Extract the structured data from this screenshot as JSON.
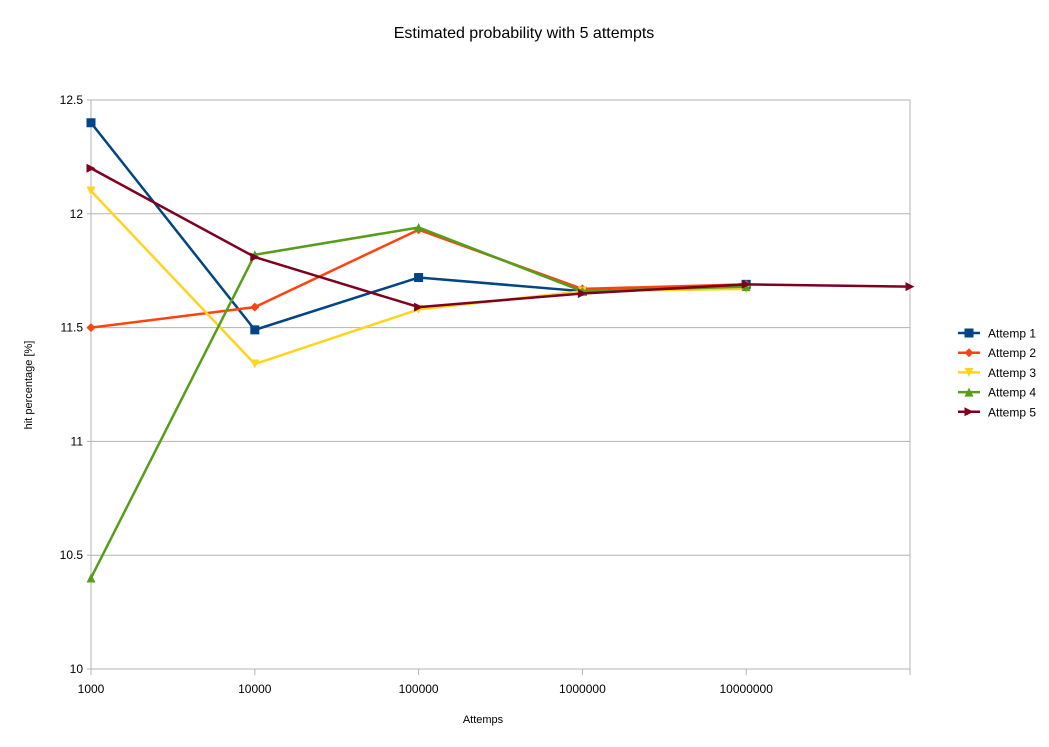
{
  "chart_data": {
    "type": "line",
    "title": "Estimated probability with 5 attempts",
    "xlabel": "Attemps",
    "ylabel": "hit percentage [%]",
    "x_scale": "log",
    "x_ticks": [
      "1000",
      "10000",
      "100000",
      "1000000",
      "10000000"
    ],
    "y_ticks": [
      "10",
      "10.5",
      "11",
      "11.5",
      "12",
      "12.5"
    ],
    "ylim": [
      10,
      12.5
    ],
    "xlim": [
      1000,
      100000000
    ],
    "grid": "horizontal",
    "legend_position": "right",
    "series": [
      {
        "name": "Attemp 1",
        "color": "#004586",
        "marker": "square",
        "x": [
          1000,
          10000,
          100000,
          1000000,
          10000000
        ],
        "values": [
          12.4,
          11.49,
          11.72,
          11.66,
          11.69
        ]
      },
      {
        "name": "Attemp 2",
        "color": "#ff420e",
        "marker": "diamond",
        "x": [
          1000,
          10000,
          100000,
          1000000,
          10000000
        ],
        "values": [
          11.5,
          11.59,
          11.93,
          11.67,
          11.69
        ]
      },
      {
        "name": "Attemp 3",
        "color": "#ffd320",
        "marker": "triangle-down",
        "x": [
          1000,
          10000,
          100000,
          1000000,
          10000000
        ],
        "values": [
          12.1,
          11.34,
          11.58,
          11.66,
          11.67
        ]
      },
      {
        "name": "Attemp 4",
        "color": "#579d1c",
        "marker": "triangle-up",
        "x": [
          1000,
          10000,
          100000,
          1000000,
          10000000
        ],
        "values": [
          10.4,
          11.82,
          11.94,
          11.66,
          11.68
        ]
      },
      {
        "name": "Attemp 5",
        "color": "#7e0021",
        "marker": "triangle-right",
        "x": [
          1000,
          10000,
          100000,
          1000000,
          10000000,
          100000000
        ],
        "values": [
          12.2,
          11.81,
          11.59,
          11.65,
          11.69,
          11.68
        ]
      }
    ]
  }
}
